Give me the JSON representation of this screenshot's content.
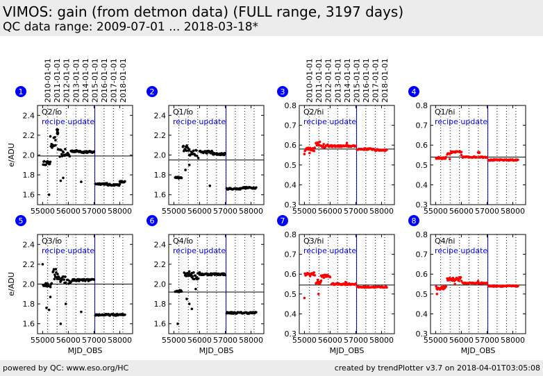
{
  "header": {
    "title": "VIMOS: gain (from detmon data) (FULL range, 3197 days)",
    "subtitle": "QC data range: 2009-07-01 ... 2018-03-18*"
  },
  "footer": {
    "left": "powered by QC: www.eso.org/HC",
    "right": "created by trendPlotter v3.7 on 2018-04-01T03:05:08"
  },
  "colors": {
    "lo_points": "#000000",
    "hi_points": "#ff0000",
    "badge": "#0000ff",
    "recipe_line": "#0000aa",
    "recipe_text": "#0000ff"
  },
  "chart_data": [
    {
      "type": "scatter",
      "panel": "1",
      "label": "Q2/lo",
      "annotation": "recipe update",
      "ylabel": "e/ADU",
      "xlabel": "",
      "xlim": [
        54800,
        58500
      ],
      "ylim": [
        1.5,
        2.5
      ],
      "yticks": [
        1.6,
        1.8,
        2.0,
        2.2,
        2.4
      ],
      "xticks": [
        55000,
        56000,
        57000,
        58000
      ],
      "top_date_ticks": [
        "2010-01-01",
        "2011-01-01",
        "2012-01-01",
        "2013-01-01",
        "2014-01-01",
        "2015-01-01",
        "2016-01-01",
        "2017-01-01",
        "2018-01-01"
      ],
      "recipe_update_mjd": 57030,
      "reference_line": 1.99,
      "color": "lo",
      "segments": [
        {
          "x0": 55020,
          "x1": 55300,
          "y": 1.92,
          "n": 14,
          "jitter": 0.02
        },
        {
          "x0": 55300,
          "x1": 55500,
          "y": 2.13,
          "n": 10,
          "jitter": 0.06
        },
        {
          "x0": 55550,
          "x1": 55600,
          "y": 2.23,
          "n": 8,
          "jitter": 0.03
        },
        {
          "x0": 55600,
          "x1": 55900,
          "y": 2.02,
          "n": 14,
          "jitter": 0.04
        },
        {
          "x0": 55950,
          "x1": 56050,
          "y": 2.0,
          "n": 5,
          "jitter": 0.05
        },
        {
          "x0": 56100,
          "x1": 56500,
          "y": 2.04,
          "n": 18,
          "jitter": 0.01
        },
        {
          "x0": 56500,
          "x1": 57000,
          "y": 2.03,
          "n": 22,
          "jitter": 0.01
        },
        {
          "x0": 57050,
          "x1": 57500,
          "y": 1.71,
          "n": 20,
          "jitter": 0.008
        },
        {
          "x0": 57500,
          "x1": 58000,
          "y": 1.7,
          "n": 20,
          "jitter": 0.008
        },
        {
          "x0": 58000,
          "x1": 58200,
          "y": 1.73,
          "n": 8,
          "jitter": 0.008
        }
      ],
      "outliers": [
        [
          55250,
          1.6
        ],
        [
          55700,
          1.74
        ],
        [
          55800,
          1.77
        ],
        [
          56500,
          1.73
        ],
        [
          55500,
          2.15
        ]
      ]
    },
    {
      "type": "scatter",
      "panel": "2",
      "label": "Q1/lo",
      "annotation": "recipe update",
      "ylabel": "",
      "xlabel": "",
      "xlim": [
        54800,
        58500
      ],
      "ylim": [
        1.5,
        2.5
      ],
      "yticks": [
        1.6,
        1.8,
        2.0,
        2.2,
        2.4
      ],
      "xticks": [
        55000,
        56000,
        57000,
        58000
      ],
      "top_date_ticks": [],
      "recipe_update_mjd": 57030,
      "reference_line": 1.95,
      "color": "lo",
      "segments": [
        {
          "x0": 55050,
          "x1": 55300,
          "y": 1.77,
          "n": 12,
          "jitter": 0.01
        },
        {
          "x0": 55350,
          "x1": 55600,
          "y": 2.07,
          "n": 14,
          "jitter": 0.03
        },
        {
          "x0": 55600,
          "x1": 55900,
          "y": 2.02,
          "n": 14,
          "jitter": 0.03
        },
        {
          "x0": 56000,
          "x1": 56500,
          "y": 2.03,
          "n": 22,
          "jitter": 0.015
        },
        {
          "x0": 56500,
          "x1": 57000,
          "y": 2.01,
          "n": 22,
          "jitter": 0.01
        },
        {
          "x0": 57050,
          "x1": 57600,
          "y": 1.66,
          "n": 22,
          "jitter": 0.008
        },
        {
          "x0": 57600,
          "x1": 58200,
          "y": 1.67,
          "n": 24,
          "jitter": 0.008
        }
      ],
      "outliers": [
        [
          55450,
          1.85
        ],
        [
          55600,
          1.9
        ],
        [
          56400,
          1.69
        ],
        [
          55950,
          1.97
        ]
      ]
    },
    {
      "type": "scatter",
      "panel": "3",
      "label": "Q2/hi",
      "annotation": "recipe update",
      "ylabel": "",
      "xlabel": "",
      "xlim": [
        54800,
        58500
      ],
      "ylim": [
        0.3,
        0.8
      ],
      "yticks": [
        0.3,
        0.4,
        0.5,
        0.6,
        0.7,
        0.8
      ],
      "xticks": [
        55000,
        56000,
        57000,
        58000
      ],
      "top_date_ticks": [
        "2010-01-01",
        "2011-01-01",
        "2012-01-01",
        "2013-01-01",
        "2014-01-01",
        "2015-01-01",
        "2016-01-01",
        "2017-01-01",
        "2018-01-01"
      ],
      "recipe_update_mjd": 57030,
      "reference_line": 0.58,
      "color": "hi",
      "segments": [
        {
          "x0": 55020,
          "x1": 55400,
          "y": 0.58,
          "n": 16,
          "jitter": 0.01
        },
        {
          "x0": 55450,
          "x1": 55600,
          "y": 0.61,
          "n": 10,
          "jitter": 0.012
        },
        {
          "x0": 55600,
          "x1": 56000,
          "y": 0.595,
          "n": 14,
          "jitter": 0.008
        },
        {
          "x0": 56000,
          "x1": 57000,
          "y": 0.595,
          "n": 40,
          "jitter": 0.004
        },
        {
          "x0": 57050,
          "x1": 57700,
          "y": 0.58,
          "n": 26,
          "jitter": 0.004
        },
        {
          "x0": 57750,
          "x1": 58200,
          "y": 0.575,
          "n": 18,
          "jitter": 0.004
        }
      ],
      "outliers": [
        [
          55000,
          0.555
        ],
        [
          55200,
          0.56
        ],
        [
          56650,
          0.61
        ],
        [
          55750,
          0.605
        ]
      ]
    },
    {
      "type": "scatter",
      "panel": "4",
      "label": "Q1/hi",
      "annotation": "recipe update",
      "ylabel": "",
      "xlabel": "",
      "xlim": [
        54800,
        58500
      ],
      "ylim": [
        0.3,
        0.8
      ],
      "yticks": [
        0.3,
        0.4,
        0.5,
        0.6,
        0.7,
        0.8
      ],
      "xticks": [
        55000,
        56000,
        57000,
        58000
      ],
      "top_date_ticks": [],
      "recipe_update_mjd": 57030,
      "reference_line": 0.54,
      "color": "hi",
      "segments": [
        {
          "x0": 55020,
          "x1": 55400,
          "y": 0.535,
          "n": 16,
          "jitter": 0.005
        },
        {
          "x0": 55450,
          "x1": 55650,
          "y": 0.56,
          "n": 10,
          "jitter": 0.008
        },
        {
          "x0": 55650,
          "x1": 56000,
          "y": 0.565,
          "n": 14,
          "jitter": 0.004
        },
        {
          "x0": 56050,
          "x1": 56600,
          "y": 0.54,
          "n": 22,
          "jitter": 0.003
        },
        {
          "x0": 56650,
          "x1": 56700,
          "y": 0.565,
          "n": 4,
          "jitter": 0.005
        },
        {
          "x0": 56700,
          "x1": 57000,
          "y": 0.54,
          "n": 12,
          "jitter": 0.003
        },
        {
          "x0": 57050,
          "x1": 58200,
          "y": 0.525,
          "n": 44,
          "jitter": 0.003
        }
      ],
      "outliers": [
        [
          55550,
          0.53
        ],
        [
          56000,
          0.55
        ]
      ]
    },
    {
      "type": "scatter",
      "panel": "5",
      "label": "Q3/lo",
      "annotation": "recipe update",
      "ylabel": "e/ADU",
      "xlabel": "MJD_OBS",
      "xlim": [
        54800,
        58500
      ],
      "ylim": [
        1.5,
        2.5
      ],
      "yticks": [
        1.6,
        1.8,
        2.0,
        2.2,
        2.4
      ],
      "xticks": [
        55000,
        56000,
        57000,
        58000
      ],
      "top_date_ticks": [],
      "recipe_update_mjd": 57030,
      "reference_line": 2.0,
      "color": "lo",
      "segments": [
        {
          "x0": 55020,
          "x1": 55350,
          "y": 1.99,
          "n": 16,
          "jitter": 0.02
        },
        {
          "x0": 55400,
          "x1": 55600,
          "y": 2.1,
          "n": 12,
          "jitter": 0.06
        },
        {
          "x0": 55600,
          "x1": 55900,
          "y": 2.04,
          "n": 14,
          "jitter": 0.04
        },
        {
          "x0": 55950,
          "x1": 56100,
          "y": 2.02,
          "n": 6,
          "jitter": 0.03
        },
        {
          "x0": 56150,
          "x1": 57000,
          "y": 2.04,
          "n": 36,
          "jitter": 0.01
        },
        {
          "x0": 57050,
          "x1": 58200,
          "y": 1.69,
          "n": 46,
          "jitter": 0.008
        }
      ],
      "outliers": [
        [
          55000,
          2.2
        ],
        [
          55150,
          1.76
        ],
        [
          55250,
          1.74
        ],
        [
          55300,
          1.87
        ],
        [
          55700,
          1.6
        ],
        [
          55900,
          1.8
        ],
        [
          56500,
          1.72
        ]
      ]
    },
    {
      "type": "scatter",
      "panel": "6",
      "label": "Q4/lo",
      "annotation": "recipe update",
      "ylabel": "",
      "xlabel": "MJD_OBS",
      "xlim": [
        54800,
        58500
      ],
      "ylim": [
        1.5,
        2.5
      ],
      "yticks": [
        1.6,
        1.8,
        2.0,
        2.2,
        2.4
      ],
      "xticks": [
        55000,
        56000,
        57000,
        58000
      ],
      "top_date_ticks": [],
      "recipe_update_mjd": 57030,
      "reference_line": 1.92,
      "color": "lo",
      "segments": [
        {
          "x0": 55050,
          "x1": 55300,
          "y": 1.93,
          "n": 12,
          "jitter": 0.01
        },
        {
          "x0": 55400,
          "x1": 55700,
          "y": 2.11,
          "n": 16,
          "jitter": 0.03
        },
        {
          "x0": 55700,
          "x1": 56000,
          "y": 2.08,
          "n": 14,
          "jitter": 0.04
        },
        {
          "x0": 56000,
          "x1": 57000,
          "y": 2.1,
          "n": 40,
          "jitter": 0.01
        },
        {
          "x0": 57050,
          "x1": 58200,
          "y": 1.71,
          "n": 46,
          "jitter": 0.008
        }
      ],
      "outliers": [
        [
          55150,
          1.6
        ],
        [
          55500,
          1.85
        ],
        [
          55600,
          1.8
        ],
        [
          55700,
          1.75
        ],
        [
          55850,
          1.95
        ]
      ]
    },
    {
      "type": "scatter",
      "panel": "7",
      "label": "Q3/hi",
      "annotation": "recipe update",
      "ylabel": "",
      "xlabel": "MJD_OBS",
      "xlim": [
        54800,
        58500
      ],
      "ylim": [
        0.3,
        0.8
      ],
      "yticks": [
        0.3,
        0.4,
        0.5,
        0.6,
        0.7,
        0.8
      ],
      "xticks": [
        55000,
        56000,
        57000,
        58000
      ],
      "top_date_ticks": [],
      "recipe_update_mjd": 57030,
      "reference_line": 0.545,
      "color": "hi",
      "segments": [
        {
          "x0": 55020,
          "x1": 55400,
          "y": 0.6,
          "n": 16,
          "jitter": 0.01
        },
        {
          "x0": 55450,
          "x1": 55650,
          "y": 0.56,
          "n": 10,
          "jitter": 0.012
        },
        {
          "x0": 55650,
          "x1": 56000,
          "y": 0.59,
          "n": 14,
          "jitter": 0.008
        },
        {
          "x0": 56050,
          "x1": 57000,
          "y": 0.55,
          "n": 38,
          "jitter": 0.004
        },
        {
          "x0": 57050,
          "x1": 58200,
          "y": 0.535,
          "n": 44,
          "jitter": 0.003
        }
      ],
      "outliers": [
        [
          55000,
          0.48
        ],
        [
          55550,
          0.5
        ],
        [
          56600,
          0.56
        ]
      ]
    },
    {
      "type": "scatter",
      "panel": "8",
      "label": "Q4/hi",
      "annotation": "recipe update",
      "ylabel": "",
      "xlabel": "MJD_OBS",
      "xlim": [
        54800,
        58500
      ],
      "ylim": [
        0.3,
        0.8
      ],
      "yticks": [
        0.3,
        0.4,
        0.5,
        0.6,
        0.7,
        0.8
      ],
      "xticks": [
        55000,
        56000,
        57000,
        58000
      ],
      "top_date_ticks": [],
      "recipe_update_mjd": 57030,
      "reference_line": 0.545,
      "color": "hi",
      "segments": [
        {
          "x0": 55020,
          "x1": 55400,
          "y": 0.53,
          "n": 16,
          "jitter": 0.008
        },
        {
          "x0": 55450,
          "x1": 55650,
          "y": 0.575,
          "n": 10,
          "jitter": 0.012
        },
        {
          "x0": 55650,
          "x1": 56000,
          "y": 0.575,
          "n": 14,
          "jitter": 0.01
        },
        {
          "x0": 56050,
          "x1": 57000,
          "y": 0.555,
          "n": 38,
          "jitter": 0.003
        },
        {
          "x0": 57050,
          "x1": 58200,
          "y": 0.54,
          "n": 44,
          "jitter": 0.003
        }
      ],
      "outliers": [
        [
          55050,
          0.5
        ],
        [
          55750,
          0.55
        ],
        [
          56650,
          0.565
        ]
      ]
    }
  ]
}
